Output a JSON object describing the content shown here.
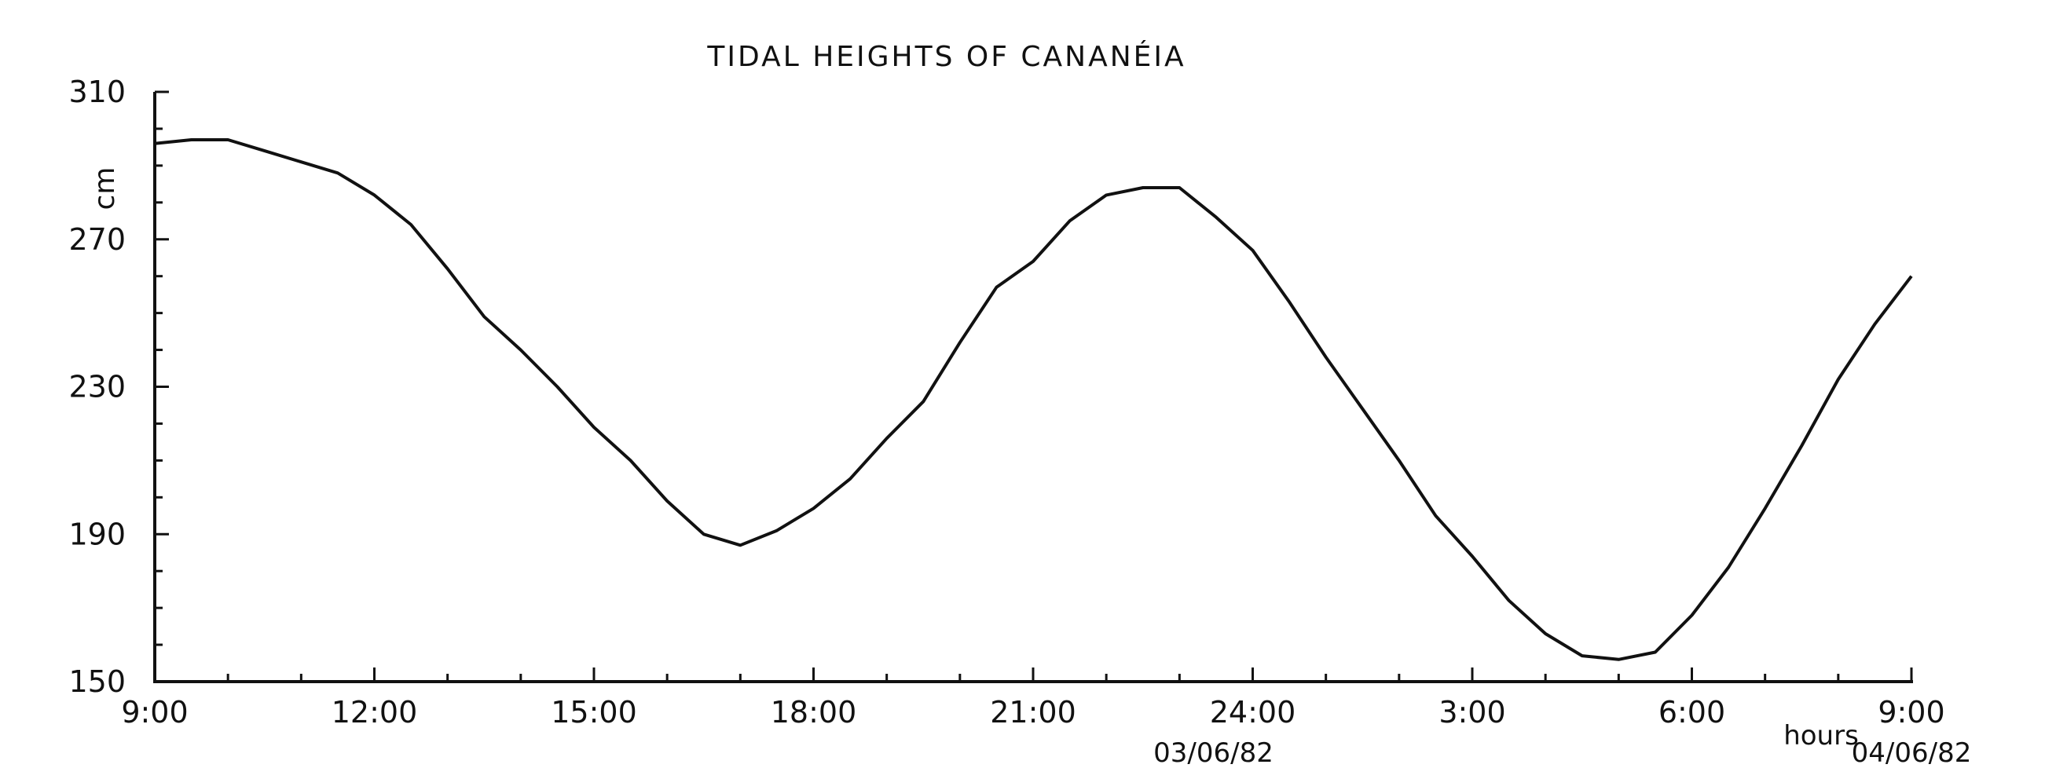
{
  "chart_data": {
    "type": "line",
    "title": "TIDAL HEIGHTS OF CANANÉIA",
    "ylabel": "cm",
    "xlabel": "hours",
    "ylim": [
      150,
      310
    ],
    "yticks": [
      150,
      190,
      230,
      270,
      310
    ],
    "xlim": [
      "09:00 03/06/82",
      "09:00 04/06/82"
    ],
    "xticks": [
      "9:00",
      "12:00",
      "15:00",
      "18:00",
      "21:00",
      "24:00",
      "3:00",
      "6:00",
      "9:00"
    ],
    "date_labels": [
      {
        "text": "03/06/82",
        "at": "24:00"
      },
      {
        "text": "04/06/82",
        "at": "9:00"
      }
    ],
    "grid": false,
    "series": [
      {
        "x": [
          "09:00",
          "09:30",
          "10:00",
          "10:30",
          "11:00",
          "11:30",
          "12:00",
          "12:30",
          "13:00",
          "13:30",
          "14:00",
          "14:30",
          "15:00",
          "15:30",
          "16:00",
          "16:30",
          "17:00",
          "17:30",
          "18:00",
          "18:30",
          "19:00",
          "19:30",
          "20:00",
          "20:30",
          "21:00",
          "21:30",
          "22:00",
          "22:30",
          "23:00",
          "23:30",
          "00:00",
          "00:30",
          "01:00",
          "01:30",
          "02:00",
          "02:30",
          "03:00",
          "03:30",
          "04:00",
          "04:30",
          "05:00",
          "05:30",
          "06:00",
          "06:30",
          "07:00",
          "07:30",
          "08:00",
          "08:30",
          "09:00"
        ],
        "y": [
          296,
          297,
          297,
          294,
          291,
          288,
          282,
          274,
          262,
          249,
          240,
          230,
          219,
          210,
          199,
          190,
          187,
          191,
          197,
          205,
          216,
          226,
          242,
          257,
          264,
          275,
          282,
          284,
          284,
          276,
          267,
          253,
          238,
          224,
          210,
          195,
          184,
          172,
          163,
          157,
          156,
          158,
          168,
          181,
          197,
          214,
          232,
          247,
          260
        ]
      }
    ]
  }
}
